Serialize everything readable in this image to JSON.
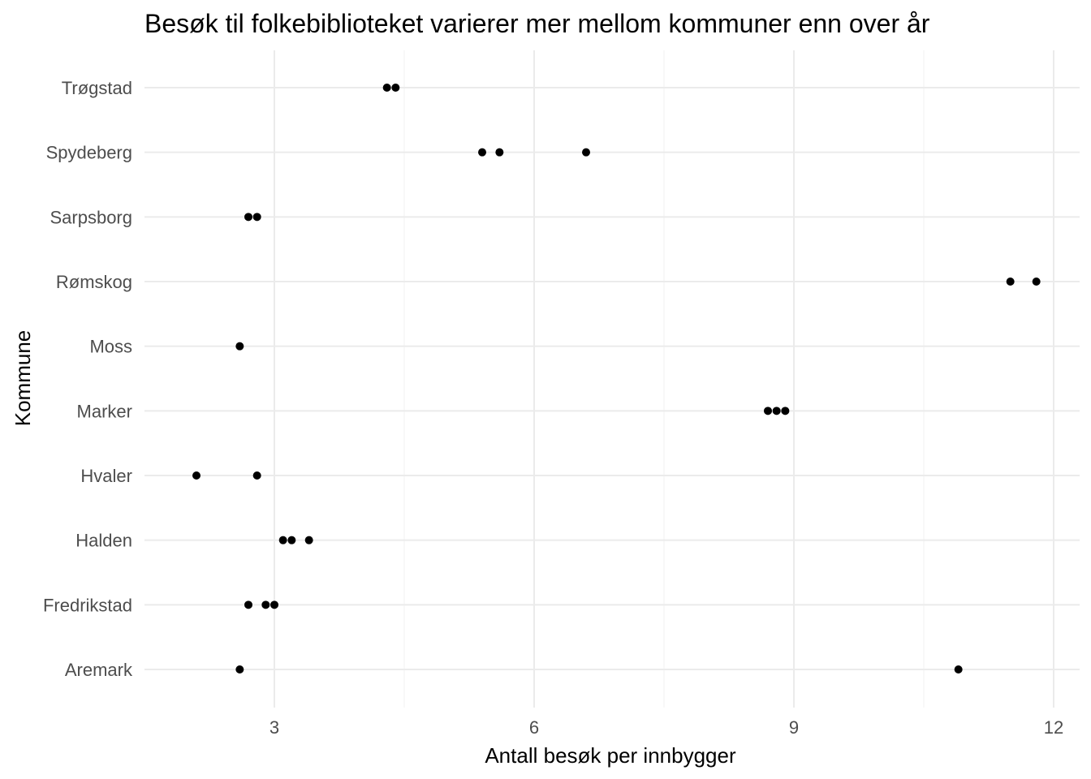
{
  "chart_data": {
    "type": "scatter",
    "title": "Besøk til folkebiblioteket varierer mer mellom kommuner enn over år",
    "xlabel": "Antall besøk per innbygger",
    "ylabel": "Kommune",
    "xlim": [
      1.5,
      12.3
    ],
    "x_ticks": [
      3,
      6,
      9,
      12
    ],
    "x_minor_ticks": [
      4.5,
      7.5,
      10.5
    ],
    "categories": [
      "Aremark",
      "Fredrikstad",
      "Halden",
      "Hvaler",
      "Marker",
      "Moss",
      "Rømskog",
      "Sarpsborg",
      "Spydeberg",
      "Trøgstad"
    ],
    "grid": true,
    "legend": "none",
    "point_color": "#000000",
    "points": [
      {
        "kommune": "Trøgstad",
        "values": [
          4.3,
          4.4
        ]
      },
      {
        "kommune": "Spydeberg",
        "values": [
          5.4,
          5.6,
          6.6
        ]
      },
      {
        "kommune": "Sarpsborg",
        "values": [
          2.7,
          2.8
        ]
      },
      {
        "kommune": "Rømskog",
        "values": [
          11.5,
          11.8
        ]
      },
      {
        "kommune": "Moss",
        "values": [
          2.6
        ]
      },
      {
        "kommune": "Marker",
        "values": [
          8.7,
          8.8,
          8.9
        ]
      },
      {
        "kommune": "Hvaler",
        "values": [
          2.1,
          2.8
        ]
      },
      {
        "kommune": "Halden",
        "values": [
          3.1,
          3.2,
          3.4
        ]
      },
      {
        "kommune": "Fredrikstad",
        "values": [
          2.7,
          2.9,
          3.0
        ]
      },
      {
        "kommune": "Aremark",
        "values": [
          2.6,
          10.9
        ]
      }
    ]
  }
}
